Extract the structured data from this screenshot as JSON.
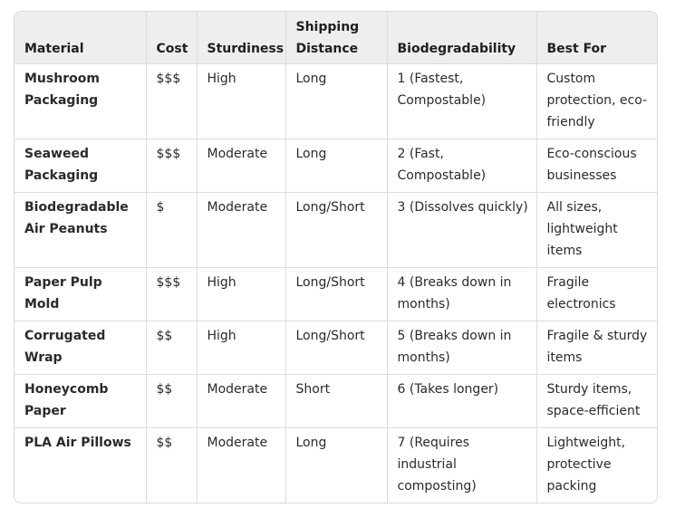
{
  "table": {
    "headers": {
      "material": "Material",
      "cost": "Cost",
      "sturdiness": "Sturdiness",
      "shipping_distance": "Shipping Distance",
      "biodegradability": "Biodegradability",
      "best_for": "Best For"
    },
    "rows": [
      {
        "material": "Mushroom Packaging",
        "cost": "$$$",
        "sturdiness": "High",
        "shipping_distance": "Long",
        "biodegradability": "1 (Fastest, Compostable)",
        "best_for": "Custom protection, eco-friendly"
      },
      {
        "material": "Seaweed Packaging",
        "cost": "$$$",
        "sturdiness": "Moderate",
        "shipping_distance": "Long",
        "biodegradability": "2 (Fast, Compostable)",
        "best_for": "Eco-conscious businesses"
      },
      {
        "material": "Biodegradable Air Peanuts",
        "cost": "$",
        "sturdiness": "Moderate",
        "shipping_distance": "Long/Short",
        "biodegradability": "3 (Dissolves quickly)",
        "best_for": "All sizes, lightweight items"
      },
      {
        "material": "Paper Pulp Mold",
        "cost": "$$$",
        "sturdiness": "High",
        "shipping_distance": "Long/Short",
        "biodegradability": "4 (Breaks down in months)",
        "best_for": "Fragile electronics"
      },
      {
        "material": "Corrugated Wrap",
        "cost": "$$",
        "sturdiness": "High",
        "shipping_distance": "Long/Short",
        "biodegradability": "5 (Breaks down in months)",
        "best_for": "Fragile & sturdy items"
      },
      {
        "material": "Honeycomb Paper",
        "cost": "$$",
        "sturdiness": "Moderate",
        "shipping_distance": "Short",
        "biodegradability": "6 (Takes longer)",
        "best_for": "Sturdy items, space-efficient"
      },
      {
        "material": "PLA Air Pillows",
        "cost": "$$",
        "sturdiness": "Moderate",
        "shipping_distance": "Long",
        "biodegradability": "7 (Requires industrial composting)",
        "best_for": "Lightweight, protective packing"
      }
    ]
  }
}
